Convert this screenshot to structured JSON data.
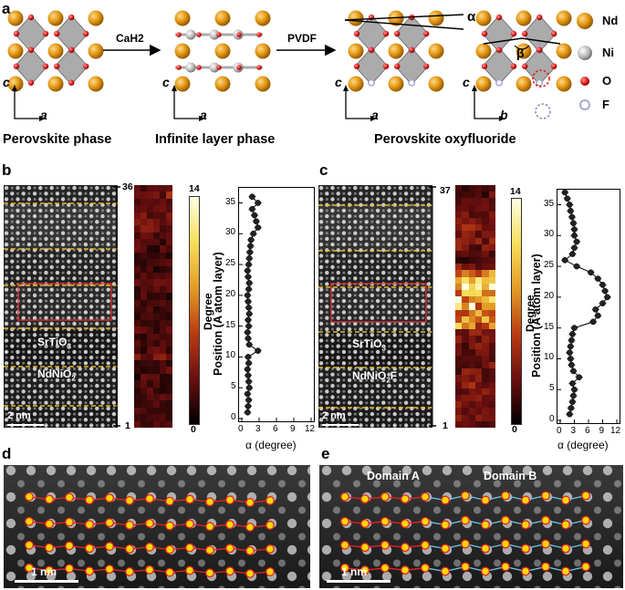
{
  "panels": {
    "a": "a",
    "b": "b",
    "c": "c",
    "d": "d",
    "e": "e"
  },
  "panel_a": {
    "phases": [
      "Perovskite phase",
      "Infinite layer phase",
      "Perovskite oxyfluoride"
    ],
    "arrow1": "CaH2",
    "arrow2": "PVDF",
    "axis_c": "c",
    "axis_a": "a",
    "axis_b": "b",
    "alpha": "α",
    "beta": "β",
    "legend": [
      {
        "label": "Nd",
        "color": "#e0940f"
      },
      {
        "label": "Ni",
        "color": "#b9b9b9"
      },
      {
        "label": "O",
        "color": "#e01b1b"
      },
      {
        "label": "F",
        "color": "#a6a9cf"
      }
    ]
  },
  "panel_b": {
    "top_layer": "36",
    "bottom_layer": "1",
    "film_upper": "SrTiO3",
    "film_lower": "NdNiO2",
    "scale_bar": "2 nm",
    "colorbar_max": "14",
    "colorbar_min": "0",
    "colorbar_label": "Degree"
  },
  "panel_c": {
    "top_layer": "37",
    "bottom_layer": "1",
    "film_upper": "SrTiO3",
    "film_lower": "NdNiO2F",
    "scale_bar": "2 nm",
    "colorbar_max": "14",
    "colorbar_min": "0",
    "colorbar_label": "Degree"
  },
  "panel_d": {
    "scale_bar": "1 nm"
  },
  "panel_e": {
    "scale_bar": "1 nm",
    "domain_a": "Domain A",
    "domain_b": "Domain B"
  },
  "colors": {
    "nd": "#e0940f",
    "o": "#e01b1b",
    "f": "#a6a9cf",
    "dash": "#e8b51f",
    "box": "#e03030",
    "line_red": "#e52222",
    "line_blue": "#6fc6e8"
  },
  "chart_data": [
    {
      "type": "scatter",
      "panel": "b",
      "xlabel": "α (degree)",
      "ylabel": "Position (A atom layer)",
      "xlim": [
        0,
        12
      ],
      "ylim": [
        0,
        37
      ],
      "xticks": [
        0,
        3,
        6,
        9,
        12
      ],
      "yticks": [
        0,
        5,
        10,
        15,
        20,
        25,
        30,
        35
      ],
      "x": [
        1.0,
        1.1,
        1.2,
        1.0,
        1.3,
        1.2,
        1.1,
        1.0,
        1.2,
        1.1,
        2.8,
        1.3,
        1.1,
        1.0,
        1.2,
        1.1,
        1.3,
        1.2,
        1.1,
        1.0,
        1.2,
        1.3,
        1.1,
        1.0,
        1.2,
        1.3,
        1.4,
        1.5,
        1.6,
        2.0,
        2.8,
        2.5,
        2.2,
        1.8,
        2.8,
        1.8
      ],
      "y": [
        1,
        2,
        3,
        4,
        5,
        6,
        7,
        8,
        9,
        10,
        11,
        12,
        13,
        14,
        15,
        16,
        17,
        18,
        19,
        20,
        21,
        22,
        23,
        24,
        25,
        26,
        27,
        28,
        29,
        30,
        31,
        32,
        33,
        34,
        35,
        36
      ]
    },
    {
      "type": "scatter",
      "panel": "c",
      "xlabel": "α (degree)",
      "ylabel": "Position (A atom layer)",
      "xlim": [
        0,
        12
      ],
      "ylim": [
        0,
        37
      ],
      "xticks": [
        0,
        3,
        6,
        9,
        12
      ],
      "yticks": [
        0,
        5,
        10,
        15,
        20,
        25,
        30,
        35
      ],
      "x": [
        2.0,
        2.3,
        2.6,
        2.8,
        3.0,
        2.6,
        4.0,
        2.8,
        2.4,
        2.2,
        2.0,
        2.2,
        2.4,
        2.6,
        3.0,
        7.0,
        8.0,
        7.5,
        9.0,
        10.0,
        9.5,
        9.0,
        8.0,
        6.5,
        3.5,
        1.0,
        2.6,
        3.0,
        3.5,
        3.0,
        3.0,
        2.8,
        2.5,
        2.2,
        2.0,
        1.5,
        1.0
      ],
      "y": [
        1,
        2,
        3,
        4,
        5,
        6,
        7,
        8,
        9,
        10,
        11,
        12,
        13,
        14,
        15,
        16,
        17,
        18,
        19,
        20,
        21,
        22,
        23,
        24,
        25,
        26,
        27,
        28,
        29,
        30,
        31,
        32,
        33,
        34,
        35,
        36,
        37
      ]
    }
  ]
}
